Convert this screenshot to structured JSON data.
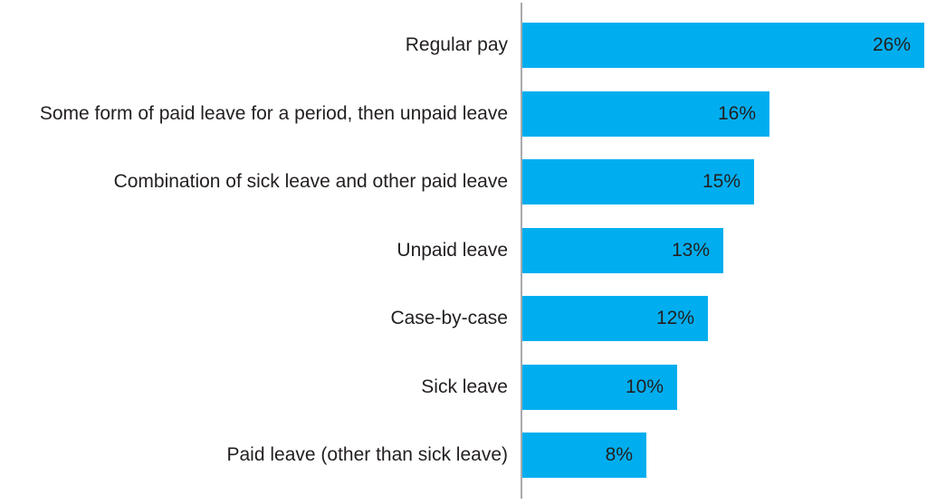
{
  "chart_data": {
    "type": "bar",
    "orientation": "horizontal",
    "title": "",
    "xlabel": "",
    "ylabel": "",
    "categories": [
      "Regular pay",
      "Some form of paid leave for a period, then unpaid leave",
      "Combination of sick leave and other paid leave",
      "Unpaid leave",
      "Case-by-case",
      "Sick leave",
      "Paid leave (other than sick leave)"
    ],
    "values": [
      26,
      16,
      15,
      13,
      12,
      10,
      8
    ],
    "value_labels": [
      "26%",
      "16%",
      "15%",
      "13%",
      "12%",
      "10%",
      "8%"
    ],
    "xlim": [
      0,
      26
    ],
    "grid": false,
    "legend": null,
    "value_label_position": "inside-end",
    "bar_color": "#00AEEF",
    "axis_line_color": "#A7A9AC",
    "text_color": "#231F20"
  }
}
